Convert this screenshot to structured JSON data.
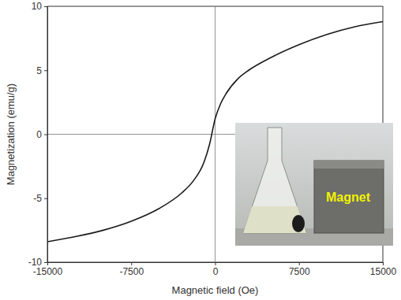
{
  "chart_data": {
    "type": "line",
    "x_label": "Magnetic field (Oe)",
    "y_label": "Magnetization (emu/g)",
    "x": [
      -15000,
      -12500,
      -10000,
      -7500,
      -5000,
      -3000,
      -2000,
      -1000,
      -500,
      0,
      500,
      1000,
      2000,
      3000,
      5000,
      7500,
      10000,
      12500,
      15000
    ],
    "values": [
      -8.4,
      -8.0,
      -7.5,
      -6.8,
      -5.8,
      -4.6,
      -3.7,
      -2.2,
      -0.8,
      1.2,
      2.4,
      3.2,
      4.3,
      5.0,
      6.0,
      7.0,
      7.8,
      8.4,
      8.8
    ],
    "color": "#1a1a1a",
    "xlim": [
      -15000,
      15000
    ],
    "xticks": [
      -15000,
      -7500,
      0,
      7500,
      15000
    ],
    "ylim": [
      -10,
      10
    ],
    "yticks": [
      -10,
      -5,
      0,
      5,
      10
    ],
    "grid": false,
    "annotations": [
      "Magnet"
    ]
  }
}
